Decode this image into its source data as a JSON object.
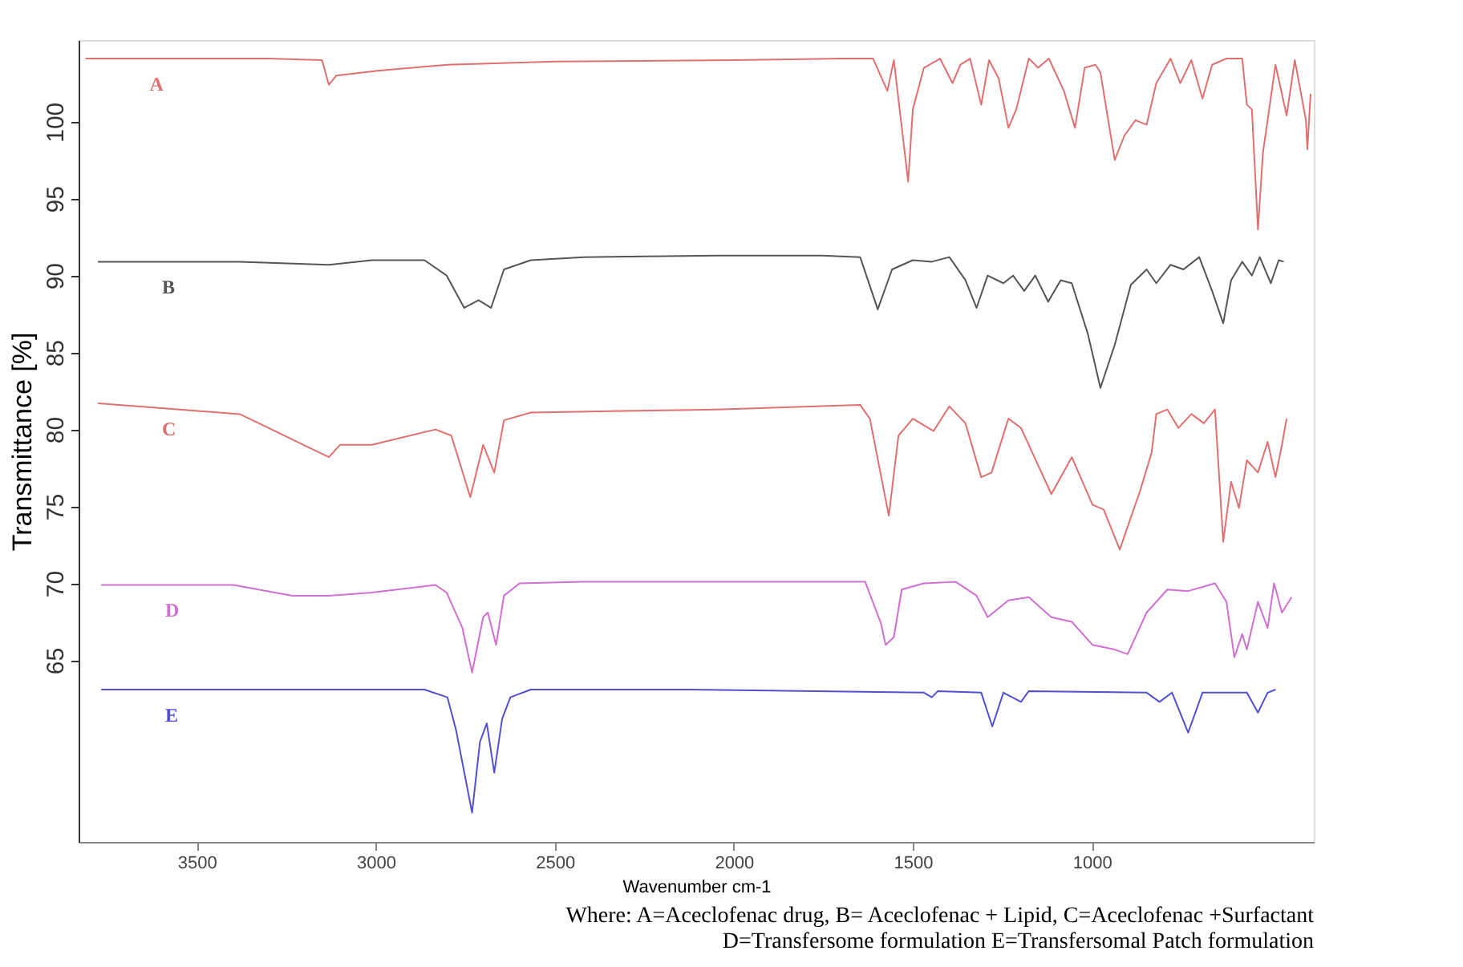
{
  "chart_data": {
    "type": "line",
    "xlabel": "Wavenumber cm-1",
    "ylabel": "Transmittance [%]",
    "xlim": [
      3830,
      380
    ],
    "ylim": [
      53.2,
      105.3
    ],
    "xticks": [
      3500,
      3000,
      2500,
      2000,
      1500,
      1000
    ],
    "yticks": [
      65,
      70,
      75,
      80,
      85,
      90,
      95,
      100
    ],
    "grid": false,
    "legend": false,
    "marker": "none",
    "line_style": "solid",
    "annotations": [
      "Where: A=Aceclofenac drug, B= Aceclofenac + Lipid, C=Aceclofenac +Surfactant",
      "D=Transfersome formulation E=Transfersomal Patch formulation"
    ],
    "series": [
      {
        "name": "A",
        "color": "#e07070",
        "x": [
          3811,
          3300,
          3150,
          3131,
          3110,
          3000,
          2800,
          2500,
          2000,
          1700,
          1611,
          1571,
          1553,
          1513,
          1500,
          1469,
          1424,
          1389,
          1367,
          1340,
          1309,
          1287,
          1260,
          1233,
          1211,
          1176,
          1150,
          1120,
          1078,
          1047,
          1020,
          990,
          976,
          936,
          909,
          878,
          847,
          820,
          780,
          753,
          722,
          691,
          664,
          624,
          580,
          567,
          553,
          536,
          522,
          509,
          487,
          456,
          433,
          402,
          398,
          389
        ],
        "values": [
          104.1,
          104.1,
          104.0,
          102.4,
          103.0,
          103.3,
          103.7,
          103.9,
          104.0,
          104.1,
          104.1,
          102.0,
          104.0,
          96.1,
          100.8,
          103.5,
          104.1,
          102.5,
          103.7,
          104.1,
          101.1,
          104.0,
          102.8,
          99.6,
          100.8,
          104.1,
          103.5,
          104.1,
          102.0,
          99.6,
          103.5,
          103.7,
          103.2,
          97.5,
          99.1,
          100.1,
          99.8,
          102.5,
          104.1,
          102.5,
          104.0,
          101.5,
          103.7,
          104.1,
          104.1,
          101.1,
          100.8,
          93.0,
          98.0,
          100.1,
          103.7,
          100.4,
          104.0,
          100.1,
          98.2,
          101.8
        ]
      },
      {
        "name": "B",
        "color": "#555555",
        "x": [
          3776,
          3380,
          3131,
          3011,
          2864,
          2802,
          2753,
          2713,
          2678,
          2642,
          2567,
          2420,
          2047,
          1753,
          1647,
          1598,
          1558,
          1500,
          1447,
          1398,
          1353,
          1322,
          1291,
          1247,
          1220,
          1189,
          1158,
          1122,
          1087,
          1056,
          1011,
          976,
          936,
          891,
          847,
          820,
          780,
          744,
          700,
          664,
          633,
          611,
          580,
          553,
          531,
          500,
          478,
          464
        ],
        "values": [
          90.9,
          90.9,
          90.7,
          91.0,
          91.0,
          90.0,
          87.9,
          88.4,
          87.9,
          90.4,
          91.0,
          91.2,
          91.3,
          91.3,
          91.2,
          87.8,
          90.4,
          91.0,
          90.9,
          91.2,
          89.7,
          87.9,
          90.0,
          89.5,
          90.0,
          89.0,
          90.0,
          88.3,
          89.7,
          89.5,
          86.2,
          82.7,
          85.5,
          89.4,
          90.4,
          89.5,
          90.7,
          90.4,
          91.2,
          89.0,
          86.9,
          89.7,
          90.9,
          90.0,
          91.2,
          89.5,
          91.0,
          90.9
        ]
      },
      {
        "name": "C",
        "color": "#e07070",
        "x": [
          3776,
          3380,
          3131,
          3100,
          3011,
          2833,
          2789,
          2736,
          2700,
          2669,
          2642,
          2567,
          2047,
          1647,
          1620,
          1567,
          1540,
          1500,
          1442,
          1398,
          1353,
          1309,
          1280,
          1233,
          1198,
          1113,
          1056,
          998,
          967,
          922,
          864,
          833,
          820,
          789,
          758,
          722,
          687,
          656,
          633,
          611,
          589,
          567,
          536,
          509,
          487,
          469,
          456
        ],
        "values": [
          81.7,
          81.0,
          78.2,
          79.0,
          79.0,
          80.0,
          79.6,
          75.6,
          79.0,
          77.2,
          80.6,
          81.1,
          81.3,
          81.6,
          80.7,
          74.4,
          79.6,
          80.7,
          79.9,
          81.5,
          80.4,
          76.9,
          77.2,
          80.7,
          80.1,
          75.8,
          78.2,
          75.1,
          74.8,
          72.2,
          76.1,
          78.5,
          81.0,
          81.3,
          80.1,
          81.0,
          80.4,
          81.3,
          72.7,
          76.6,
          74.9,
          78.0,
          77.2,
          79.2,
          76.9,
          79.0,
          80.7
        ]
      },
      {
        "name": "D",
        "color": "#d070d0",
        "x": [
          3767,
          3398,
          3233,
          3131,
          3011,
          2833,
          2802,
          2758,
          2731,
          2700,
          2687,
          2664,
          2642,
          2598,
          2420,
          2033,
          1633,
          1589,
          1576,
          1553,
          1531,
          1469,
          1380,
          1322,
          1291,
          1233,
          1176,
          1113,
          1056,
          998,
          936,
          900,
          847,
          789,
          731,
          656,
          624,
          602,
          580,
          567,
          536,
          509,
          491,
          469,
          442
        ],
        "values": [
          69.9,
          69.9,
          69.2,
          69.2,
          69.4,
          69.9,
          69.4,
          67.1,
          64.2,
          67.8,
          68.1,
          66.0,
          69.2,
          70.0,
          70.1,
          70.1,
          70.1,
          67.4,
          66.0,
          66.5,
          69.6,
          70.0,
          70.1,
          69.2,
          67.8,
          68.9,
          69.1,
          67.8,
          67.5,
          66.0,
          65.7,
          65.4,
          68.1,
          69.6,
          69.5,
          70.0,
          68.8,
          65.2,
          66.7,
          65.7,
          68.8,
          67.1,
          70.0,
          68.1,
          69.1
        ]
      },
      {
        "name": "E",
        "color": "#5050d0",
        "x": [
          3767,
          2864,
          2800,
          2776,
          2731,
          2709,
          2690,
          2669,
          2647,
          2624,
          2567,
          2122,
          1469,
          1447,
          1430,
          1309,
          1278,
          1247,
          1198,
          1176,
          847,
          811,
          776,
          731,
          691,
          567,
          536,
          509,
          487
        ],
        "values": [
          63.1,
          63.1,
          62.6,
          60.5,
          55.1,
          59.7,
          60.9,
          57.7,
          61.2,
          62.6,
          63.1,
          63.1,
          62.9,
          62.6,
          63.0,
          62.9,
          60.7,
          62.9,
          62.3,
          63.0,
          62.9,
          62.3,
          62.9,
          60.3,
          62.9,
          62.9,
          61.6,
          62.9,
          63.1
        ]
      }
    ]
  }
}
